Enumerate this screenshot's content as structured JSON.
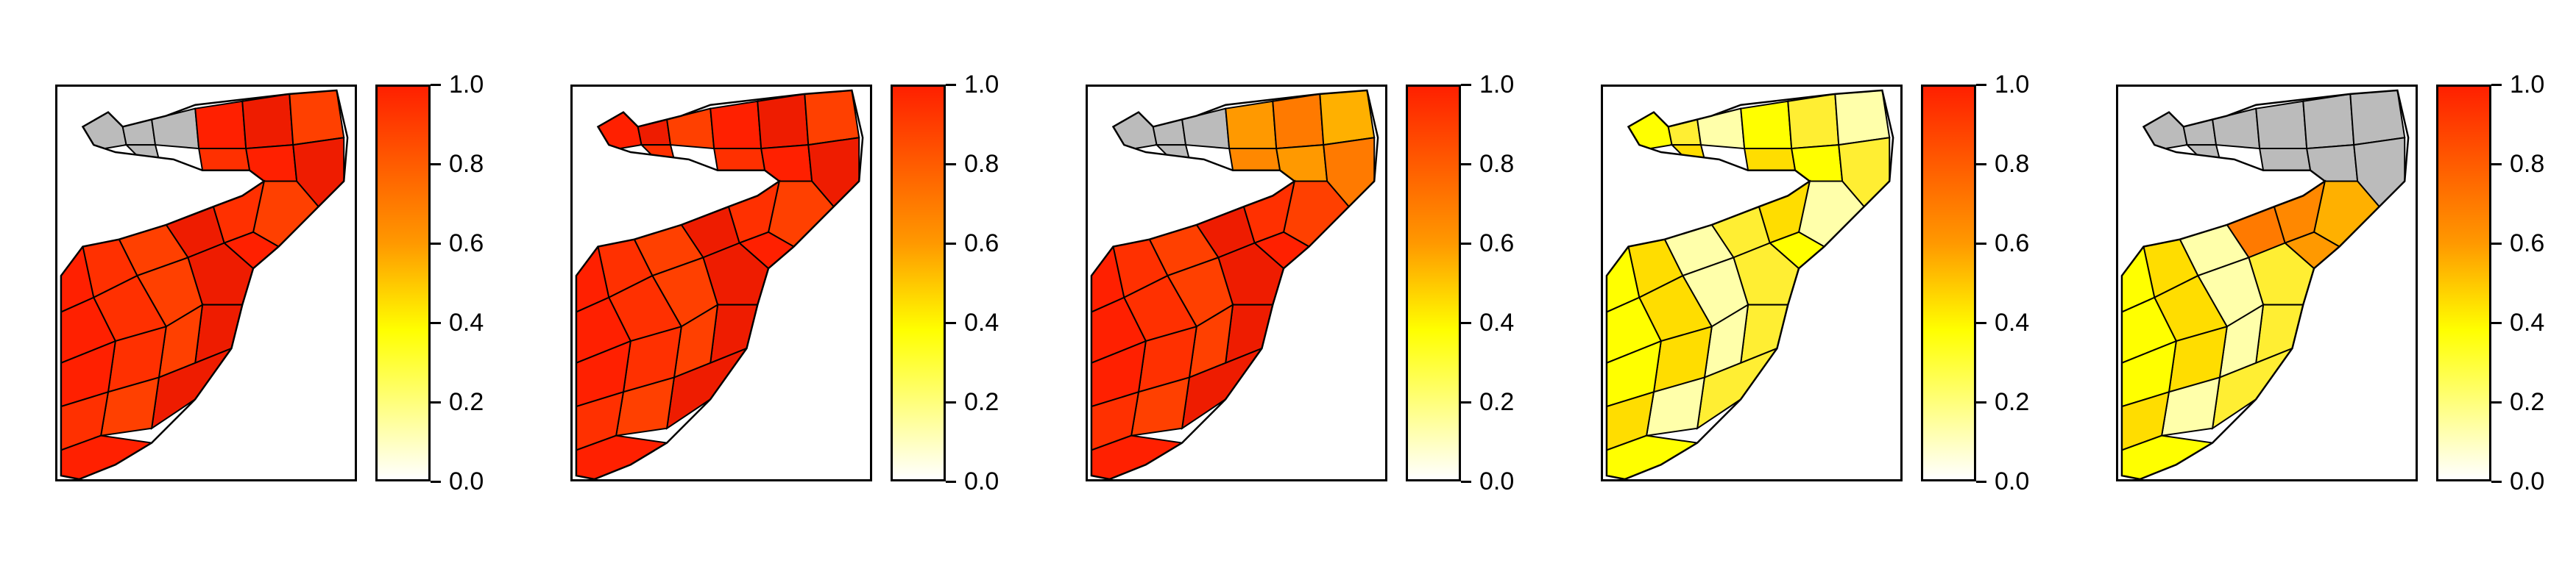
{
  "figure": {
    "colorbar_ticks": [
      "1.0",
      "0.8",
      "0.6",
      "0.4",
      "0.2",
      "0.0"
    ],
    "colorbar_scale": {
      "min": 0.0,
      "max": 1.0,
      "colors": [
        "#ffffff",
        "#ffff00",
        "#ff9900",
        "#ff2000"
      ]
    },
    "no_data_color": "#bbbbbb",
    "border_color": "#000000"
  },
  "panels": [
    {
      "id": "map-1",
      "regions": {
        "northwest": "no-data",
        "northeast": "high",
        "central": "high",
        "south": "high"
      }
    },
    {
      "id": "map-2",
      "regions": {
        "northwest": "high",
        "northeast": "high",
        "central": "high",
        "south": "high"
      }
    },
    {
      "id": "map-3",
      "regions": {
        "northwest": "no-data",
        "northeast": "medium",
        "central": "high",
        "south": "high"
      }
    },
    {
      "id": "map-4",
      "regions": {
        "northwest": "low",
        "northeast": "low",
        "central": "low",
        "south": "low"
      }
    },
    {
      "id": "map-5",
      "regions": {
        "northwest": "no-data",
        "northeast": "no-data",
        "central": "medium",
        "south": "low"
      }
    }
  ]
}
